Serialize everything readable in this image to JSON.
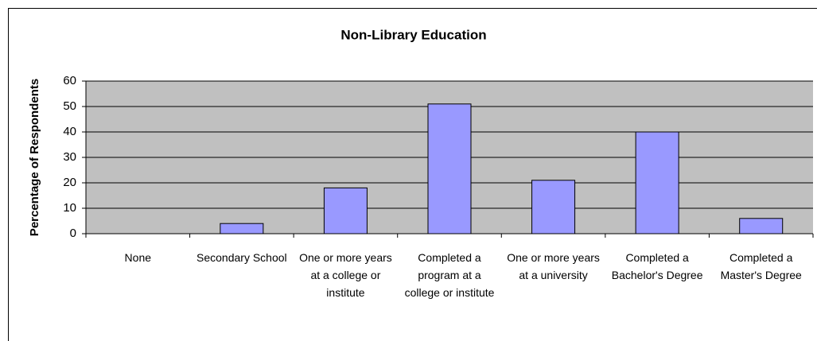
{
  "chart_data": {
    "type": "bar",
    "title": "Non-Library Education",
    "ylabel": "Percentage of Respondents",
    "categories": [
      "None",
      "Secondary School",
      "One or more years at a college or institute",
      "Completed a program at a college or institute",
      "One or more years at a university",
      "Completed a Bachelor's Degree",
      "Completed a Master's Degree"
    ],
    "values": [
      0,
      4,
      18,
      51,
      21,
      40,
      6
    ],
    "color": "#9999ff",
    "ylim": [
      0,
      60
    ],
    "yticks": [
      0,
      10,
      20,
      30,
      40,
      50,
      60
    ],
    "grid": true
  }
}
